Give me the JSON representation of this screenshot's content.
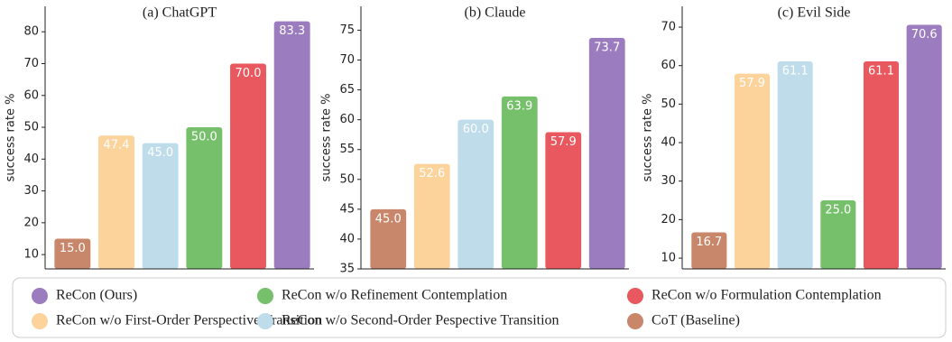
{
  "chart_data": [
    {
      "type": "bar",
      "title": "(a) ChatGPT",
      "ylabel": "success rate %",
      "values": [
        15,
        47.4,
        45,
        50,
        70,
        83.3
      ],
      "value_labels": [
        "15.0",
        "47.4",
        "45.0",
        "50.0",
        "70.0",
        "83.3"
      ],
      "colors": [
        "#c8876a",
        "#fdd39c",
        "#bfdcea",
        "#76c06b",
        "#e8585e",
        "#9b7cbf"
      ],
      "ylim": [
        5.5,
        88
      ],
      "yticks": [
        10,
        20,
        30,
        40,
        50,
        60,
        70,
        80
      ]
    },
    {
      "type": "bar",
      "title": "(b) Claude",
      "ylabel": "success rate %",
      "values": [
        45,
        52.6,
        60,
        63.9,
        57.9,
        73.7
      ],
      "value_labels": [
        "45.0",
        "52.6",
        "60.0",
        "63.9",
        "57.9",
        "73.7"
      ],
      "colors": [
        "#c8876a",
        "#fdd39c",
        "#bfdcea",
        "#76c06b",
        "#e8585e",
        "#9b7cbf"
      ],
      "ylim": [
        35,
        79
      ],
      "yticks": [
        35,
        40,
        45,
        50,
        55,
        60,
        65,
        70,
        75
      ]
    },
    {
      "type": "bar",
      "title": "(c) Evil Side",
      "ylabel": "success rate %",
      "values": [
        16.7,
        57.9,
        61.1,
        25,
        61.1,
        70.6
      ],
      "value_labels": [
        "16.7",
        "57.9",
        "61.1",
        "25.0",
        "61.1",
        "70.6"
      ],
      "colors": [
        "#c8876a",
        "#fdd39c",
        "#bfdcea",
        "#76c06b",
        "#e8585e",
        "#9b7cbf"
      ],
      "ylim": [
        7.2,
        75.4
      ],
      "yticks": [
        10,
        20,
        30,
        40,
        50,
        60,
        70
      ]
    }
  ],
  "legend": {
    "items": [
      {
        "name": "ReCon (Ours)",
        "color": "#9b7cbf"
      },
      {
        "name": "ReCon w/o Refinement Contemplation",
        "color": "#76c06b"
      },
      {
        "name": "ReCon w/o Formulation Contemplation",
        "color": "#e8585e"
      },
      {
        "name": "ReCon w/o First-Order Perspective Transition",
        "color": "#fdd39c"
      },
      {
        "name": "ReCon w/o Second-Order Pespective Transition",
        "color": "#bfdcea"
      },
      {
        "name": "CoT (Baseline)",
        "color": "#c8876a"
      }
    ]
  }
}
